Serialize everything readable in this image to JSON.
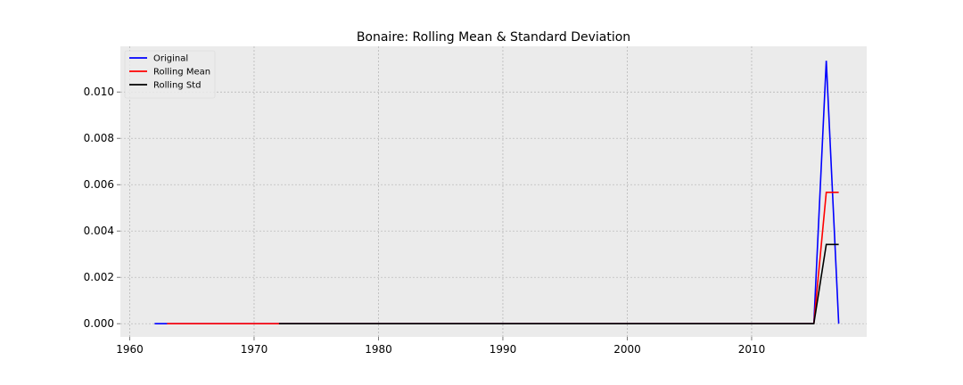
{
  "chart_data": {
    "type": "line",
    "title": "Bonaire: Rolling Mean & Standard Deviation",
    "xlabel": "",
    "ylabel": "",
    "xlim": [
      1959.25,
      2019.25
    ],
    "ylim": [
      -0.00057,
      0.01197
    ],
    "x_ticks": [
      1960,
      1970,
      1980,
      1990,
      2000,
      2010
    ],
    "x_tick_labels": [
      "1960",
      "1970",
      "1980",
      "1990",
      "2000",
      "2010"
    ],
    "y_ticks": [
      0,
      0.002,
      0.004,
      0.006,
      0.008,
      0.01
    ],
    "y_tick_labels": [
      "0.000",
      "0.002",
      "0.004",
      "0.006",
      "0.008",
      "0.010"
    ],
    "grid": true,
    "legend_position": "top-left",
    "series": [
      {
        "name": "Original",
        "color": "#0000ff",
        "points": [
          [
            1962,
            0
          ],
          [
            2015,
            0
          ],
          [
            2016,
            0.01135
          ],
          [
            2017,
            0
          ]
        ]
      },
      {
        "name": "Rolling Mean",
        "color": "#ff0000",
        "points": [
          [
            1963,
            0
          ],
          [
            2015,
            0
          ],
          [
            2016,
            0.00567
          ],
          [
            2017,
            0.00567
          ]
        ]
      },
      {
        "name": "Rolling Std",
        "color": "#000000",
        "points": [
          [
            1972,
            0
          ],
          [
            2015,
            0
          ],
          [
            2016,
            0.00342
          ],
          [
            2017,
            0.00342
          ]
        ]
      }
    ]
  }
}
